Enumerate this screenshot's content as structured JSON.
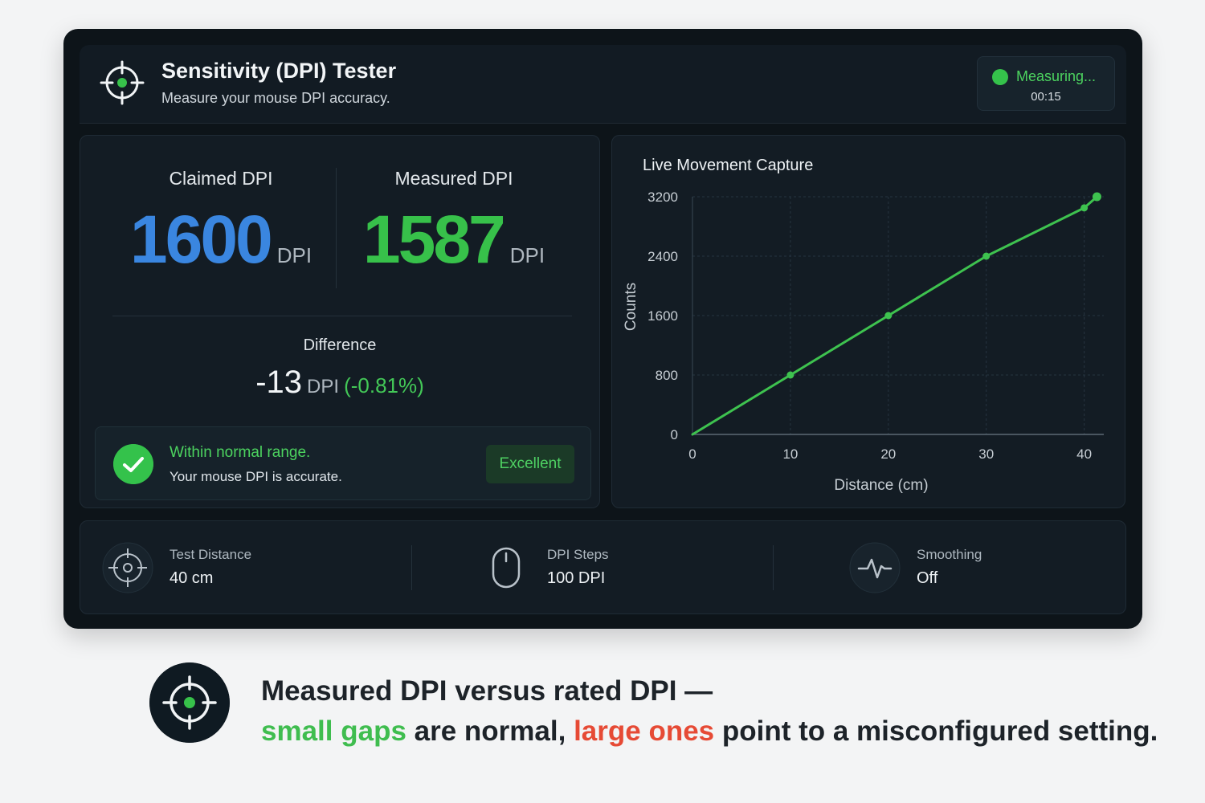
{
  "header": {
    "title": "Sensitivity (DPI) Tester",
    "subtitle": "Measure your mouse DPI accuracy.",
    "status_label": "Measuring...",
    "status_time": "00:15",
    "status_color": "#35c24b"
  },
  "dpi": {
    "claimed_label": "Claimed DPI",
    "claimed_value": "1600",
    "claimed_unit": "DPI",
    "measured_label": "Measured DPI",
    "measured_value": "1587",
    "measured_unit": "DPI",
    "difference_label": "Difference",
    "difference_value": "-13",
    "difference_unit": "DPI",
    "difference_percent": "(-0.81%)"
  },
  "result": {
    "title": "Within normal range.",
    "subtitle": "Your mouse DPI is accurate.",
    "badge": "Excellent"
  },
  "chart_data": {
    "type": "line",
    "title": "Live Movement Capture",
    "xlabel": "Distance (cm)",
    "ylabel": "Counts",
    "xlim": [
      0,
      42
    ],
    "ylim": [
      0,
      3200
    ],
    "x_ticks": [
      0,
      10,
      20,
      30,
      40
    ],
    "y_ticks": [
      0,
      800,
      1600,
      2400,
      3200
    ],
    "grid": true,
    "series": [
      {
        "x": [
          0,
          10,
          20,
          30,
          40,
          41.3
        ],
        "y": [
          0,
          800,
          1600,
          2400,
          3050,
          3200
        ],
        "color": "#3ec24f"
      }
    ]
  },
  "stats": [
    {
      "label": "Test Distance",
      "value": "40 cm",
      "icon": "crosshair-icon"
    },
    {
      "label": "DPI Steps",
      "value": "100 DPI",
      "icon": "mouse-icon"
    },
    {
      "label": "Smoothing",
      "value": "Off",
      "icon": "pulse-icon"
    }
  ],
  "caption": {
    "line1": "Measured DPI versus rated DPI —",
    "green": "small gaps",
    "mid": " are normal, ",
    "red": "large ones",
    "end": " point to a misconfigured setting."
  },
  "colors": {
    "accent_blue": "#3a86e0",
    "accent_green": "#37c14a",
    "accent_red": "#e64a35"
  }
}
